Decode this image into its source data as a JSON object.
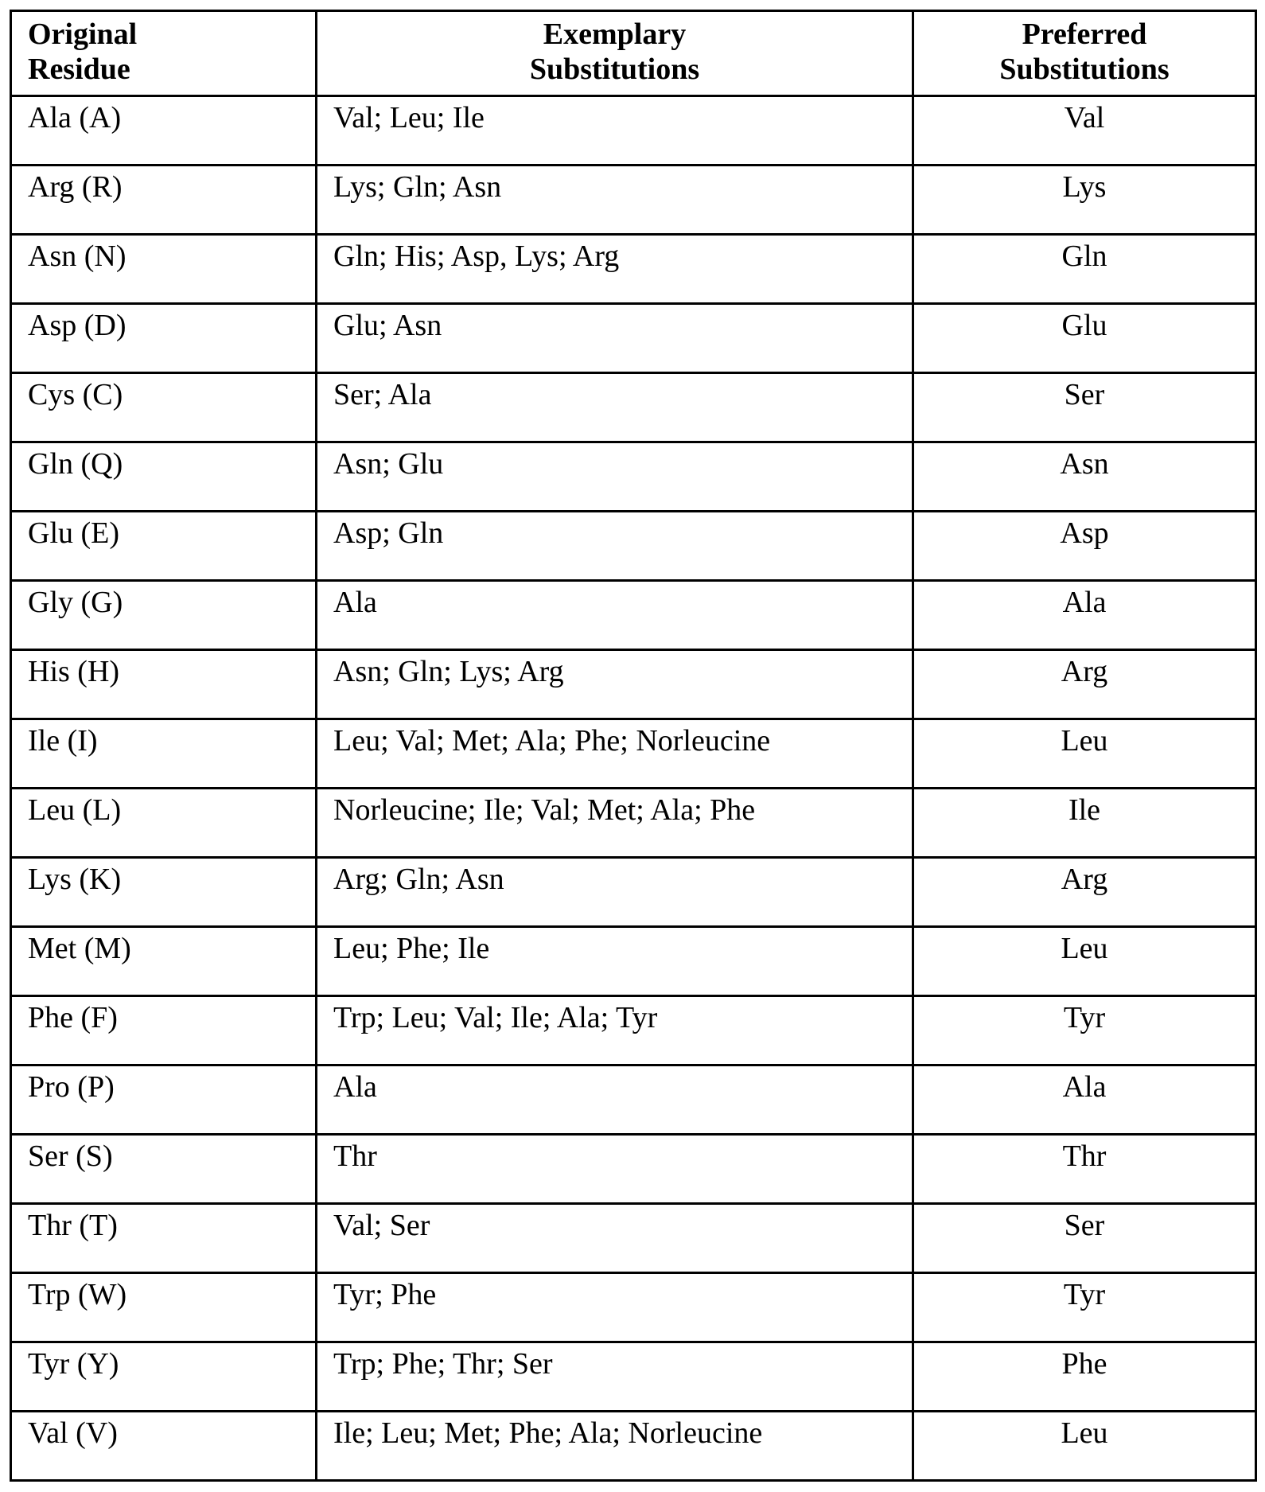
{
  "headers": {
    "original": [
      "Original",
      "Residue"
    ],
    "exemplary": [
      "Exemplary",
      "Substitutions"
    ],
    "preferred": [
      "Preferred",
      "Substitutions"
    ]
  },
  "rows": [
    {
      "original": "Ala (A)",
      "exemplary": "Val; Leu; Ile",
      "preferred": "Val"
    },
    {
      "original": "Arg (R)",
      "exemplary": "Lys; Gln; Asn",
      "preferred": "Lys"
    },
    {
      "original": "Asn (N)",
      "exemplary": "Gln; His; Asp, Lys; Arg",
      "preferred": "Gln"
    },
    {
      "original": "Asp (D)",
      "exemplary": "Glu; Asn",
      "preferred": "Glu"
    },
    {
      "original": "Cys (C)",
      "exemplary": "Ser; Ala",
      "preferred": "Ser"
    },
    {
      "original": "Gln (Q)",
      "exemplary": "Asn; Glu",
      "preferred": "Asn"
    },
    {
      "original": "Glu (E)",
      "exemplary": "Asp; Gln",
      "preferred": "Asp"
    },
    {
      "original": "Gly (G)",
      "exemplary": "Ala",
      "preferred": "Ala"
    },
    {
      "original": "His (H)",
      "exemplary": "Asn; Gln; Lys; Arg",
      "preferred": "Arg"
    },
    {
      "original": "Ile (I)",
      "exemplary": "Leu; Val; Met; Ala; Phe; Norleucine",
      "preferred": "Leu"
    },
    {
      "original": "Leu (L)",
      "exemplary": "Norleucine; Ile; Val; Met; Ala; Phe",
      "preferred": "Ile"
    },
    {
      "original": "Lys (K)",
      "exemplary": "Arg; Gln; Asn",
      "preferred": "Arg"
    },
    {
      "original": "Met (M)",
      "exemplary": "Leu; Phe; Ile",
      "preferred": "Leu"
    },
    {
      "original": "Phe (F)",
      "exemplary": "Trp; Leu; Val; Ile; Ala; Tyr",
      "preferred": "Tyr"
    },
    {
      "original": "Pro (P)",
      "exemplary": "Ala",
      "preferred": "Ala"
    },
    {
      "original": "Ser (S)",
      "exemplary": "Thr",
      "preferred": "Thr"
    },
    {
      "original": "Thr (T)",
      "exemplary": "Val; Ser",
      "preferred": "Ser"
    },
    {
      "original": "Trp (W)",
      "exemplary": "Tyr; Phe",
      "preferred": "Tyr"
    },
    {
      "original": "Tyr (Y)",
      "exemplary": "Trp; Phe; Thr; Ser",
      "preferred": "Phe"
    },
    {
      "original": "Val (V)",
      "exemplary": "Ile; Leu; Met; Phe; Ala; Norleucine",
      "preferred": "Leu"
    }
  ]
}
